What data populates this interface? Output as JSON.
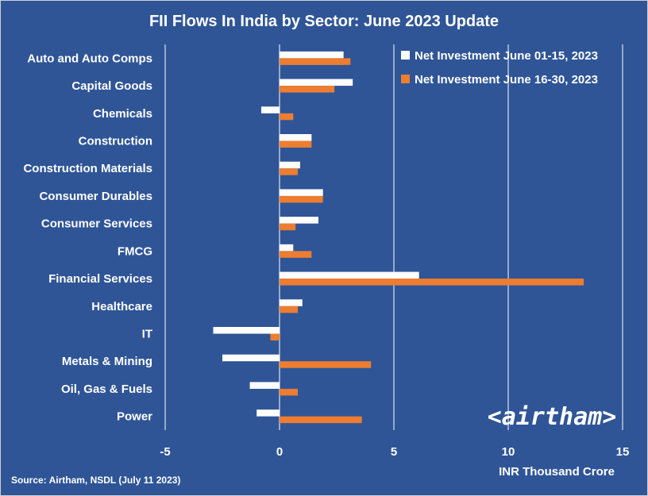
{
  "chart_data": {
    "type": "bar",
    "orientation": "horizontal",
    "title": "FII Flows In India by Sector: June 2023 Update",
    "xlabel": "INR Thousand Crore",
    "ylabel": "",
    "xlim": [
      -5,
      15
    ],
    "xticks": [
      -5,
      0,
      5,
      10,
      15
    ],
    "grid": true,
    "legend_position": "top-right",
    "categories": [
      "Auto and Auto Comps",
      "Capital Goods",
      "Chemicals",
      "Construction",
      "Construction Materials",
      "Consumer Durables",
      "Consumer Services",
      "FMCG",
      "Financial Services",
      "Healthcare",
      "IT",
      "Metals & Mining",
      "Oil, Gas & Fuels",
      "Power"
    ],
    "series": [
      {
        "name": "Net Investment June 01-15, 2023",
        "color": "#ffffff",
        "values": [
          2.8,
          3.2,
          -0.8,
          1.4,
          0.9,
          1.9,
          1.7,
          0.6,
          6.1,
          1.0,
          -2.9,
          -2.5,
          -1.3,
          -1.0
        ]
      },
      {
        "name": "Net Investment June 16-30, 2023",
        "color": "#ed7d31",
        "values": [
          3.1,
          2.4,
          0.6,
          1.4,
          0.8,
          1.9,
          0.7,
          1.4,
          13.3,
          0.8,
          -0.4,
          4.0,
          0.8,
          3.6
        ]
      }
    ]
  },
  "source": "Source: Airtham, NSDL (July 11 2023)",
  "brand": "<airtham>",
  "colors": {
    "background": "#2f5597",
    "gridline": "#ffffff"
  }
}
